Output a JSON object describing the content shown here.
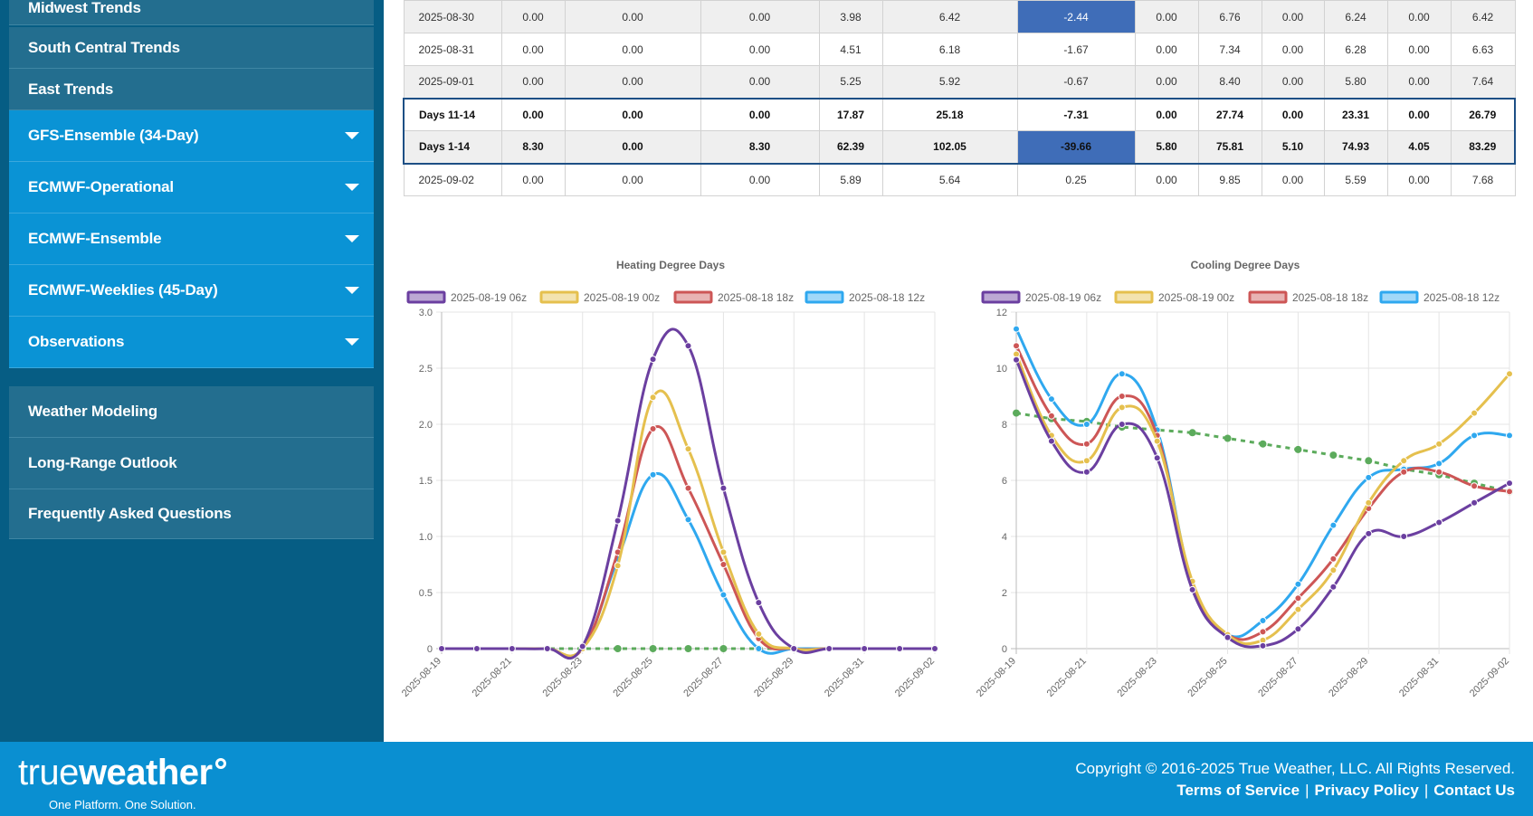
{
  "sidebar": {
    "items": [
      {
        "label": "Midwest Trends",
        "style": "dark",
        "dropdown": false
      },
      {
        "label": "South Central Trends",
        "style": "dark",
        "dropdown": false
      },
      {
        "label": "East Trends",
        "style": "dark",
        "dropdown": false
      },
      {
        "label": "GFS-Ensemble (34-Day)",
        "style": "blue",
        "dropdown": true
      },
      {
        "label": "ECMWF-Operational",
        "style": "blue",
        "dropdown": true
      },
      {
        "label": "ECMWF-Ensemble",
        "style": "blue",
        "dropdown": true
      },
      {
        "label": "ECMWF-Weeklies (45-Day)",
        "style": "blue",
        "dropdown": true
      },
      {
        "label": "Observations",
        "style": "blue",
        "dropdown": true
      },
      {
        "label": "Weather Modeling",
        "style": "dark",
        "dropdown": false
      },
      {
        "label": "Long-Range Outlook",
        "style": "dark",
        "dropdown": false
      },
      {
        "label": "Frequently Asked Questions",
        "style": "dark",
        "dropdown": false
      }
    ]
  },
  "table": {
    "rows": [
      {
        "cells": [
          "2025-08-30",
          "0.00",
          "0.00",
          "0.00",
          "3.98",
          "6.42",
          "-2.44",
          "0.00",
          "6.76",
          "0.00",
          "6.24",
          "0.00",
          "6.42"
        ],
        "highlight": 6,
        "kind": "alt"
      },
      {
        "cells": [
          "2025-08-31",
          "0.00",
          "0.00",
          "0.00",
          "4.51",
          "6.18",
          "-1.67",
          "0.00",
          "7.34",
          "0.00",
          "6.28",
          "0.00",
          "6.63"
        ],
        "highlight": -1,
        "kind": "plain"
      },
      {
        "cells": [
          "2025-09-01",
          "0.00",
          "0.00",
          "0.00",
          "5.25",
          "5.92",
          "-0.67",
          "0.00",
          "8.40",
          "0.00",
          "5.80",
          "0.00",
          "7.64"
        ],
        "highlight": -1,
        "kind": "alt"
      },
      {
        "cells": [
          "Days 11-14",
          "0.00",
          "0.00",
          "0.00",
          "17.87",
          "25.18",
          "-7.31",
          "0.00",
          "27.74",
          "0.00",
          "23.31",
          "0.00",
          "26.79"
        ],
        "highlight": -1,
        "kind": "sum-top"
      },
      {
        "cells": [
          "Days 1-14",
          "8.30",
          "0.00",
          "8.30",
          "62.39",
          "102.05",
          "-39.66",
          "5.80",
          "75.81",
          "5.10",
          "74.93",
          "4.05",
          "83.29"
        ],
        "highlight": 6,
        "kind": "sum-bot"
      },
      {
        "cells": [
          "2025-09-02",
          "0.00",
          "0.00",
          "0.00",
          "5.89",
          "5.64",
          "0.25",
          "0.00",
          "9.85",
          "0.00",
          "5.59",
          "0.00",
          "7.68"
        ],
        "highlight": -1,
        "kind": "plain"
      }
    ]
  },
  "chart_data": [
    {
      "type": "line",
      "title": "Heating Degree Days",
      "x": [
        "2025-08-19",
        "2025-08-20",
        "2025-08-21",
        "2025-08-22",
        "2025-08-23",
        "2025-08-24",
        "2025-08-25",
        "2025-08-26",
        "2025-08-27",
        "2025-08-28",
        "2025-08-29",
        "2025-08-30",
        "2025-08-31",
        "2025-09-01",
        "2025-09-02"
      ],
      "x_tick_labels": [
        "2025-08-19",
        "2025-08-21",
        "2025-08-23",
        "2025-08-25",
        "2025-08-27",
        "2025-08-29",
        "2025-08-31",
        "2025-09-02"
      ],
      "ylim": [
        0,
        3.0
      ],
      "y_ticks": [
        "0",
        "0.5",
        "1.0",
        "1.5",
        "2.0",
        "2.5",
        "3.0"
      ],
      "y_tick_values": [
        0,
        0.5,
        1.0,
        1.5,
        2.0,
        2.5,
        3.0
      ],
      "legend_position": "top",
      "grid": true,
      "series": [
        {
          "name": "2025-08-19 06z",
          "color": "#6b3fa0",
          "values": [
            0,
            0,
            0,
            0,
            0.02,
            1.14,
            2.58,
            2.7,
            1.43,
            0.41,
            0,
            0,
            0,
            0,
            0
          ]
        },
        {
          "name": "2025-08-19 00z",
          "color": "#e5c04e",
          "values": [
            0,
            0,
            0,
            0,
            0,
            0.74,
            2.24,
            1.78,
            0.86,
            0.13,
            0,
            0,
            0,
            0,
            0
          ]
        },
        {
          "name": "2025-08-18 18z",
          "color": "#cd5656",
          "values": [
            0,
            0,
            0,
            0,
            0,
            0.86,
            1.96,
            1.43,
            0.75,
            0.09,
            0,
            0,
            0,
            0,
            0
          ]
        },
        {
          "name": "2025-08-18 12z",
          "color": "#2fa8ef",
          "values": [
            0,
            0,
            0,
            0,
            0,
            0.8,
            1.55,
            1.15,
            0.48,
            0,
            0,
            0,
            0,
            0,
            0
          ]
        }
      ],
      "normal": {
        "color": "#5cab5c",
        "values": [
          0,
          0,
          0,
          0,
          0,
          0,
          0,
          0,
          0,
          0,
          0,
          0,
          0,
          0,
          0
        ]
      }
    },
    {
      "type": "line",
      "title": "Cooling Degree Days",
      "x": [
        "2025-08-19",
        "2025-08-20",
        "2025-08-21",
        "2025-08-22",
        "2025-08-23",
        "2025-08-24",
        "2025-08-25",
        "2025-08-26",
        "2025-08-27",
        "2025-08-28",
        "2025-08-29",
        "2025-08-30",
        "2025-08-31",
        "2025-09-01",
        "2025-09-02"
      ],
      "x_tick_labels": [
        "2025-08-19",
        "2025-08-21",
        "2025-08-23",
        "2025-08-25",
        "2025-08-27",
        "2025-08-29",
        "2025-08-31",
        "2025-09-02"
      ],
      "ylim": [
        0,
        12
      ],
      "y_ticks": [
        "0",
        "2",
        "4",
        "6",
        "8",
        "10",
        "12"
      ],
      "y_tick_values": [
        0,
        2,
        4,
        6,
        8,
        10,
        12
      ],
      "legend_position": "top",
      "grid": true,
      "series": [
        {
          "name": "2025-08-19 06z",
          "color": "#6b3fa0",
          "values": [
            10.3,
            7.4,
            6.3,
            8.0,
            6.8,
            2.1,
            0.4,
            0.1,
            0.7,
            2.2,
            4.1,
            4.0,
            4.5,
            5.2,
            5.9
          ]
        },
        {
          "name": "2025-08-19 00z",
          "color": "#e5c04e",
          "values": [
            10.5,
            7.6,
            6.7,
            8.6,
            7.4,
            2.4,
            0.5,
            0.3,
            1.4,
            2.8,
            5.2,
            6.7,
            7.3,
            8.4,
            9.8
          ]
        },
        {
          "name": "2025-08-18 18z",
          "color": "#cd5656",
          "values": [
            10.8,
            8.3,
            7.3,
            9.0,
            7.6,
            2.2,
            0.5,
            0.6,
            1.8,
            3.2,
            5.0,
            6.3,
            6.3,
            5.8,
            5.6
          ]
        },
        {
          "name": "2025-08-18 12z",
          "color": "#2fa8ef",
          "values": [
            11.4,
            8.9,
            8.0,
            9.8,
            7.8,
            2.3,
            0.5,
            1.0,
            2.3,
            4.4,
            6.1,
            6.4,
            6.6,
            7.6,
            7.6
          ]
        }
      ],
      "normal": {
        "color": "#5cab5c",
        "values": [
          8.4,
          8.2,
          8.1,
          7.9,
          7.8,
          7.7,
          7.5,
          7.3,
          7.1,
          6.9,
          6.7,
          6.4,
          6.2,
          5.9,
          5.6
        ]
      }
    }
  ],
  "footer": {
    "logo_thin": "true",
    "logo_bold": "weather",
    "tagline": "One Platform. One Solution.",
    "copyright": "Copyright © 2016-2025 True Weather, LLC. All Rights Reserved.",
    "links": [
      "Terms of Service",
      "Privacy Policy",
      "Contact Us"
    ]
  }
}
